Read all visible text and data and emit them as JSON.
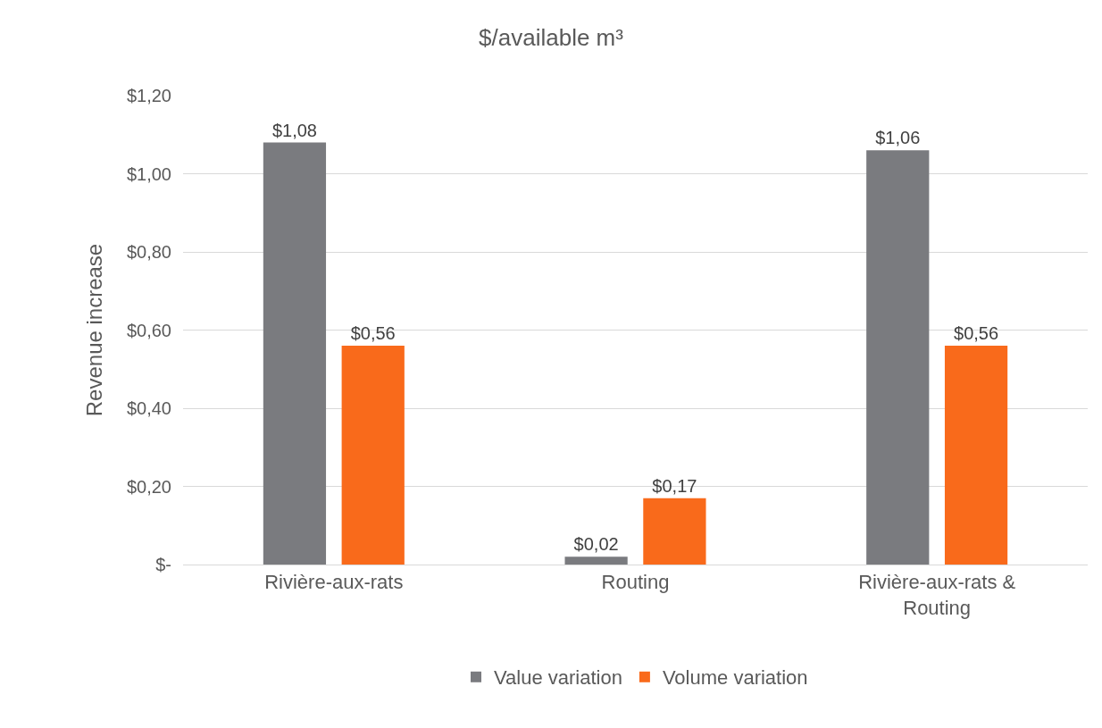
{
  "chart_data": {
    "type": "bar",
    "title": "$/available m³",
    "ylabel": "Revenue increase",
    "categories": [
      "Rivière-aux-rats",
      "Routing",
      "Rivière-aux-rats & Routing"
    ],
    "series": [
      {
        "name": "Value variation",
        "color": "#7a7b7f",
        "values": [
          1.08,
          0.02,
          1.06
        ],
        "value_labels": [
          "$1,08",
          "$0,02",
          "$1,06"
        ]
      },
      {
        "name": "Volume variation",
        "color": "#f96a1b",
        "values": [
          0.56,
          0.17,
          0.56
        ],
        "value_labels": [
          "$0,56",
          "$0,17",
          "$0,56"
        ]
      }
    ],
    "ylim": [
      0,
      1.2
    ],
    "yticks": [
      {
        "value": 0,
        "label": "$-"
      },
      {
        "value": 0.2,
        "label": "$0,20"
      },
      {
        "value": 0.4,
        "label": "$0,40"
      },
      {
        "value": 0.6,
        "label": "$0,60"
      },
      {
        "value": 0.8,
        "label": "$0,80"
      },
      {
        "value": 1,
        "label": "$1,00"
      },
      {
        "value": 1.2,
        "label": "$1,20"
      }
    ],
    "grid": "y",
    "legend": "bottom"
  }
}
